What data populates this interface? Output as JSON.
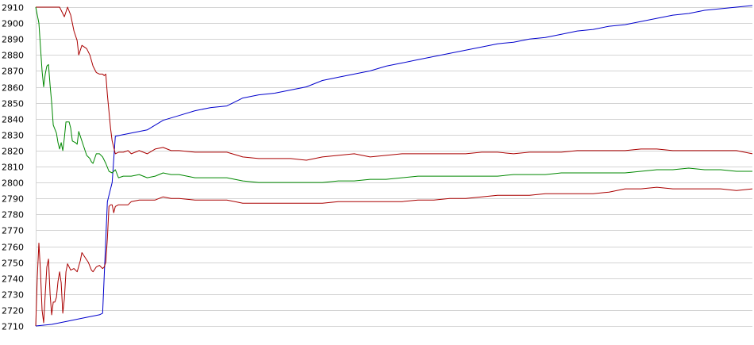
{
  "chart_data": {
    "type": "line",
    "title": "",
    "xlabel": "",
    "ylabel": "",
    "ylim": [
      2710,
      2910
    ],
    "xlim": [
      0,
      450
    ],
    "y_ticks": [
      "2910",
      "2900",
      "2890",
      "2880",
      "2870",
      "2860",
      "2850",
      "2840",
      "2830",
      "2820",
      "2810",
      "2800",
      "2790",
      "2780",
      "2770",
      "2760",
      "2750",
      "2740",
      "2730",
      "2720",
      "2710"
    ],
    "grid": true,
    "legend": "none",
    "series": [
      {
        "color": "#0000cc",
        "points": [
          [
            0,
            2710
          ],
          [
            10,
            2711
          ],
          [
            20,
            2713
          ],
          [
            30,
            2715
          ],
          [
            40,
            2717
          ],
          [
            42,
            2718
          ],
          [
            45,
            2788
          ],
          [
            48,
            2800
          ],
          [
            50,
            2829
          ],
          [
            60,
            2831
          ],
          [
            70,
            2833
          ],
          [
            80,
            2839
          ],
          [
            90,
            2842
          ],
          [
            100,
            2845
          ],
          [
            110,
            2847
          ],
          [
            120,
            2848
          ],
          [
            130,
            2853
          ],
          [
            140,
            2855
          ],
          [
            150,
            2856
          ],
          [
            160,
            2858
          ],
          [
            170,
            2860
          ],
          [
            180,
            2864
          ],
          [
            190,
            2866
          ],
          [
            200,
            2868
          ],
          [
            210,
            2870
          ],
          [
            220,
            2873
          ],
          [
            230,
            2875
          ],
          [
            240,
            2877
          ],
          [
            250,
            2879
          ],
          [
            260,
            2881
          ],
          [
            270,
            2883
          ],
          [
            280,
            2885
          ],
          [
            290,
            2887
          ],
          [
            300,
            2888
          ],
          [
            310,
            2890
          ],
          [
            320,
            2891
          ],
          [
            330,
            2893
          ],
          [
            340,
            2895
          ],
          [
            350,
            2896
          ],
          [
            360,
            2898
          ],
          [
            370,
            2899
          ],
          [
            380,
            2901
          ],
          [
            390,
            2903
          ],
          [
            400,
            2905
          ],
          [
            410,
            2906
          ],
          [
            420,
            2908
          ],
          [
            430,
            2909
          ],
          [
            440,
            2910
          ],
          [
            450,
            2911
          ]
        ]
      },
      {
        "color": "#aa0000",
        "points": [
          [
            0,
            2910
          ],
          [
            5,
            2910
          ],
          [
            10,
            2910
          ],
          [
            15,
            2910
          ],
          [
            18,
            2904
          ],
          [
            20,
            2910
          ],
          [
            22,
            2905
          ],
          [
            24,
            2895
          ],
          [
            26,
            2889
          ],
          [
            27,
            2880
          ],
          [
            29,
            2886
          ],
          [
            32,
            2884
          ],
          [
            34,
            2880
          ],
          [
            36,
            2873
          ],
          [
            38,
            2869
          ],
          [
            40,
            2868
          ],
          [
            42,
            2868
          ],
          [
            43,
            2867
          ],
          [
            44,
            2868
          ],
          [
            45,
            2855
          ],
          [
            47,
            2834
          ],
          [
            48,
            2826
          ],
          [
            50,
            2818
          ],
          [
            52,
            2819
          ],
          [
            55,
            2819
          ],
          [
            58,
            2820
          ],
          [
            60,
            2818
          ],
          [
            65,
            2820
          ],
          [
            70,
            2818
          ],
          [
            75,
            2821
          ],
          [
            80,
            2822
          ],
          [
            85,
            2820
          ],
          [
            90,
            2820
          ],
          [
            100,
            2819
          ],
          [
            110,
            2819
          ],
          [
            120,
            2819
          ],
          [
            130,
            2816
          ],
          [
            140,
            2815
          ],
          [
            150,
            2815
          ],
          [
            160,
            2815
          ],
          [
            170,
            2814
          ],
          [
            180,
            2816
          ],
          [
            190,
            2817
          ],
          [
            200,
            2818
          ],
          [
            210,
            2816
          ],
          [
            220,
            2817
          ],
          [
            230,
            2818
          ],
          [
            240,
            2818
          ],
          [
            250,
            2818
          ],
          [
            260,
            2818
          ],
          [
            270,
            2818
          ],
          [
            280,
            2819
          ],
          [
            290,
            2819
          ],
          [
            300,
            2818
          ],
          [
            310,
            2819
          ],
          [
            320,
            2819
          ],
          [
            330,
            2819
          ],
          [
            340,
            2820
          ],
          [
            350,
            2820
          ],
          [
            360,
            2820
          ],
          [
            370,
            2820
          ],
          [
            380,
            2821
          ],
          [
            390,
            2821
          ],
          [
            400,
            2820
          ],
          [
            410,
            2820
          ],
          [
            420,
            2820
          ],
          [
            430,
            2820
          ],
          [
            440,
            2820
          ],
          [
            450,
            2818
          ]
        ]
      },
      {
        "color": "#008800",
        "points": [
          [
            0,
            2910
          ],
          [
            2,
            2900
          ],
          [
            4,
            2870
          ],
          [
            5,
            2860
          ],
          [
            6,
            2868
          ],
          [
            7,
            2873
          ],
          [
            8,
            2874
          ],
          [
            9,
            2861
          ],
          [
            10,
            2850
          ],
          [
            11,
            2836
          ],
          [
            13,
            2831
          ],
          [
            14,
            2825
          ],
          [
            15,
            2821
          ],
          [
            16,
            2825
          ],
          [
            17,
            2820
          ],
          [
            18,
            2828
          ],
          [
            19,
            2838
          ],
          [
            20,
            2838
          ],
          [
            21,
            2838
          ],
          [
            22,
            2834
          ],
          [
            23,
            2826
          ],
          [
            25,
            2825
          ],
          [
            26,
            2824
          ],
          [
            27,
            2832
          ],
          [
            28,
            2829
          ],
          [
            30,
            2823
          ],
          [
            32,
            2817
          ],
          [
            34,
            2815
          ],
          [
            35,
            2813
          ],
          [
            36,
            2812
          ],
          [
            38,
            2818
          ],
          [
            40,
            2818
          ],
          [
            42,
            2816
          ],
          [
            44,
            2812
          ],
          [
            46,
            2807
          ],
          [
            48,
            2806
          ],
          [
            50,
            2808
          ],
          [
            52,
            2803
          ],
          [
            55,
            2804
          ],
          [
            60,
            2804
          ],
          [
            65,
            2805
          ],
          [
            70,
            2803
          ],
          [
            75,
            2804
          ],
          [
            80,
            2806
          ],
          [
            85,
            2805
          ],
          [
            90,
            2805
          ],
          [
            100,
            2803
          ],
          [
            110,
            2803
          ],
          [
            120,
            2803
          ],
          [
            130,
            2801
          ],
          [
            140,
            2800
          ],
          [
            150,
            2800
          ],
          [
            160,
            2800
          ],
          [
            170,
            2800
          ],
          [
            180,
            2800
          ],
          [
            190,
            2801
          ],
          [
            200,
            2801
          ],
          [
            210,
            2802
          ],
          [
            220,
            2802
          ],
          [
            230,
            2803
          ],
          [
            240,
            2804
          ],
          [
            250,
            2804
          ],
          [
            260,
            2804
          ],
          [
            270,
            2804
          ],
          [
            280,
            2804
          ],
          [
            290,
            2804
          ],
          [
            300,
            2805
          ],
          [
            310,
            2805
          ],
          [
            320,
            2805
          ],
          [
            330,
            2806
          ],
          [
            340,
            2806
          ],
          [
            350,
            2806
          ],
          [
            360,
            2806
          ],
          [
            370,
            2806
          ],
          [
            380,
            2807
          ],
          [
            390,
            2808
          ],
          [
            400,
            2808
          ],
          [
            410,
            2809
          ],
          [
            420,
            2808
          ],
          [
            430,
            2808
          ],
          [
            440,
            2807
          ],
          [
            450,
            2807
          ]
        ]
      },
      {
        "color": "#aa0000",
        "points": [
          [
            0,
            2710
          ],
          [
            1,
            2741
          ],
          [
            2,
            2762
          ],
          [
            3,
            2744
          ],
          [
            4,
            2720
          ],
          [
            5,
            2712
          ],
          [
            6,
            2730
          ],
          [
            7,
            2747
          ],
          [
            8,
            2752
          ],
          [
            9,
            2730
          ],
          [
            10,
            2717
          ],
          [
            11,
            2725
          ],
          [
            12,
            2725
          ],
          [
            13,
            2728
          ],
          [
            14,
            2738
          ],
          [
            15,
            2744
          ],
          [
            16,
            2737
          ],
          [
            17,
            2718
          ],
          [
            18,
            2727
          ],
          [
            19,
            2744
          ],
          [
            20,
            2749
          ],
          [
            22,
            2745
          ],
          [
            24,
            2746
          ],
          [
            26,
            2744
          ],
          [
            28,
            2751
          ],
          [
            29,
            2756
          ],
          [
            31,
            2753
          ],
          [
            33,
            2750
          ],
          [
            35,
            2745
          ],
          [
            36,
            2744
          ],
          [
            38,
            2747
          ],
          [
            40,
            2748
          ],
          [
            42,
            2746
          ],
          [
            43,
            2747
          ],
          [
            44,
            2750
          ],
          [
            45,
            2765
          ],
          [
            46,
            2785
          ],
          [
            47,
            2786
          ],
          [
            48,
            2786
          ],
          [
            49,
            2781
          ],
          [
            50,
            2785
          ],
          [
            52,
            2786
          ],
          [
            55,
            2786
          ],
          [
            58,
            2786
          ],
          [
            60,
            2788
          ],
          [
            65,
            2789
          ],
          [
            70,
            2789
          ],
          [
            75,
            2789
          ],
          [
            80,
            2791
          ],
          [
            85,
            2790
          ],
          [
            90,
            2790
          ],
          [
            100,
            2789
          ],
          [
            110,
            2789
          ],
          [
            120,
            2789
          ],
          [
            130,
            2787
          ],
          [
            140,
            2787
          ],
          [
            150,
            2787
          ],
          [
            160,
            2787
          ],
          [
            170,
            2787
          ],
          [
            180,
            2787
          ],
          [
            190,
            2788
          ],
          [
            200,
            2788
          ],
          [
            210,
            2788
          ],
          [
            220,
            2788
          ],
          [
            230,
            2788
          ],
          [
            240,
            2789
          ],
          [
            250,
            2789
          ],
          [
            260,
            2790
          ],
          [
            270,
            2790
          ],
          [
            280,
            2791
          ],
          [
            290,
            2792
          ],
          [
            300,
            2792
          ],
          [
            310,
            2792
          ],
          [
            320,
            2793
          ],
          [
            330,
            2793
          ],
          [
            340,
            2793
          ],
          [
            350,
            2793
          ],
          [
            360,
            2794
          ],
          [
            370,
            2796
          ],
          [
            380,
            2796
          ],
          [
            390,
            2797
          ],
          [
            400,
            2796
          ],
          [
            410,
            2796
          ],
          [
            420,
            2796
          ],
          [
            430,
            2796
          ],
          [
            440,
            2795
          ],
          [
            450,
            2796
          ]
        ]
      }
    ]
  }
}
